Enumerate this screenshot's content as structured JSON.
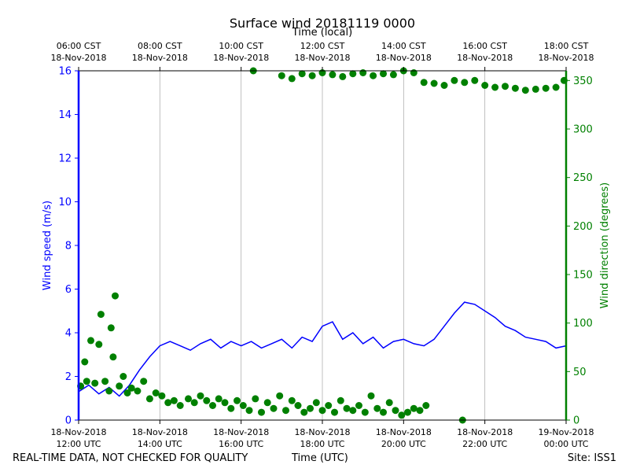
{
  "chart_data": {
    "type": "line+scatter",
    "title": "Surface wind 20181119 0000",
    "top_axis_label": "Time (local)",
    "bottom_axis_label": "Time (UTC)",
    "left_ylabel": "Wind speed (m/s)",
    "right_ylabel": "Wind direction (degrees)",
    "footer_left": "REAL-TIME DATA, NOT CHECKED FOR QUALITY",
    "footer_right": "Site: ISS1",
    "x_range_hours_utc": [
      12,
      24
    ],
    "left_ylim": [
      0,
      16
    ],
    "right_ylim": [
      0,
      360
    ],
    "left_yticks": [
      "0",
      "2",
      "4",
      "6",
      "8",
      "10",
      "12",
      "14",
      "16"
    ],
    "right_yticks": [
      "0",
      "50",
      "100",
      "150",
      "200",
      "250",
      "300",
      "350"
    ],
    "bottom_xticks": [
      {
        "hour": 12,
        "time": "12:00 UTC",
        "date": "18-Nov-2018"
      },
      {
        "hour": 14,
        "time": "14:00 UTC",
        "date": "18-Nov-2018"
      },
      {
        "hour": 16,
        "time": "16:00 UTC",
        "date": "18-Nov-2018"
      },
      {
        "hour": 18,
        "time": "18:00 UTC",
        "date": "18-Nov-2018"
      },
      {
        "hour": 20,
        "time": "20:00 UTC",
        "date": "18-Nov-2018"
      },
      {
        "hour": 22,
        "time": "22:00 UTC",
        "date": "18-Nov-2018"
      },
      {
        "hour": 24,
        "time": "00:00 UTC",
        "date": "19-Nov-2018"
      }
    ],
    "top_xticks": [
      {
        "hour": 12,
        "time": "06:00 CST",
        "date": "18-Nov-2018"
      },
      {
        "hour": 14,
        "time": "08:00 CST",
        "date": "18-Nov-2018"
      },
      {
        "hour": 16,
        "time": "10:00 CST",
        "date": "18-Nov-2018"
      },
      {
        "hour": 18,
        "time": "12:00 CST",
        "date": "18-Nov-2018"
      },
      {
        "hour": 20,
        "time": "14:00 CST",
        "date": "18-Nov-2018"
      },
      {
        "hour": 22,
        "time": "16:00 CST",
        "date": "18-Nov-2018"
      },
      {
        "hour": 24,
        "time": "18:00 CST",
        "date": "18-Nov-2018"
      }
    ],
    "grid": "vertical",
    "series": [
      {
        "name": "Wind speed",
        "kind": "line",
        "axis": "left",
        "color": "#0000ff",
        "x": [
          12.0,
          12.25,
          12.5,
          12.75,
          13.0,
          13.25,
          13.5,
          13.75,
          14.0,
          14.25,
          14.5,
          14.75,
          15.0,
          15.25,
          15.5,
          15.75,
          16.0,
          16.25,
          16.5,
          16.75,
          17.0,
          17.25,
          17.5,
          17.75,
          18.0,
          18.25,
          18.5,
          18.75,
          19.0,
          19.25,
          19.5,
          19.75,
          20.0,
          20.25,
          20.5,
          20.75,
          21.0,
          21.25,
          21.5,
          21.75,
          22.0,
          22.25,
          22.5,
          22.75,
          23.0,
          23.25,
          23.5,
          23.75,
          24.0
        ],
        "y": [
          1.3,
          1.6,
          1.2,
          1.5,
          1.1,
          1.6,
          2.3,
          2.9,
          3.4,
          3.6,
          3.4,
          3.2,
          3.5,
          3.7,
          3.3,
          3.6,
          3.4,
          3.6,
          3.3,
          3.5,
          3.7,
          3.3,
          3.8,
          3.6,
          4.3,
          4.5,
          3.7,
          4.0,
          3.5,
          3.8,
          3.3,
          3.6,
          3.7,
          3.5,
          3.4,
          3.7,
          4.3,
          4.9,
          5.4,
          5.3,
          5.0,
          4.7,
          4.3,
          4.1,
          3.8,
          3.7,
          3.6,
          3.3,
          3.4
        ]
      },
      {
        "name": "Wind direction",
        "kind": "scatter",
        "axis": "right",
        "color": "#008000",
        "x": [
          12.05,
          12.15,
          12.2,
          12.3,
          12.4,
          12.5,
          12.55,
          12.65,
          12.75,
          12.8,
          12.85,
          12.9,
          13.0,
          13.1,
          13.2,
          13.3,
          13.45,
          13.6,
          13.75,
          13.9,
          14.05,
          14.2,
          14.35,
          14.5,
          14.7,
          14.85,
          15.0,
          15.15,
          15.3,
          15.45,
          15.6,
          15.75,
          15.9,
          16.05,
          16.2,
          16.35,
          16.5,
          16.65,
          16.8,
          16.95,
          17.1,
          17.25,
          17.4,
          17.55,
          17.7,
          17.85,
          18.0,
          18.15,
          18.3,
          18.45,
          18.6,
          18.75,
          18.9,
          19.05,
          19.2,
          19.35,
          19.5,
          19.65,
          19.8,
          19.95,
          20.1,
          20.25,
          20.4,
          20.55,
          21.45,
          16.3,
          17.0,
          17.25,
          17.5,
          17.75,
          18.0,
          18.25,
          18.5,
          18.75,
          19.0,
          19.25,
          19.5,
          19.75,
          20.0,
          20.25,
          20.5,
          20.75,
          21.0,
          21.25,
          21.5,
          21.75,
          22.0,
          22.25,
          22.5,
          22.75,
          23.0,
          23.25,
          23.5,
          23.75,
          23.95
        ],
        "y": [
          35,
          60,
          40,
          82,
          38,
          78,
          109,
          40,
          30,
          95,
          65,
          128,
          35,
          45,
          28,
          33,
          30,
          40,
          22,
          28,
          25,
          18,
          20,
          15,
          22,
          18,
          25,
          20,
          15,
          22,
          18,
          12,
          20,
          15,
          10,
          22,
          8,
          18,
          12,
          25,
          10,
          20,
          15,
          8,
          12,
          18,
          10,
          15,
          8,
          20,
          12,
          10,
          15,
          8,
          25,
          12,
          8,
          18,
          10,
          5,
          8,
          12,
          10,
          15,
          0,
          360,
          355,
          352,
          357,
          355,
          358,
          356,
          354,
          357,
          358,
          355,
          357,
          356,
          360,
          358,
          348,
          347,
          345,
          350,
          348,
          350,
          345,
          343,
          344,
          342,
          340,
          341,
          342,
          343,
          350
        ]
      }
    ]
  }
}
